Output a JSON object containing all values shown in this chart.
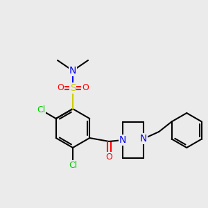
{
  "background_color": "#ebebeb",
  "bond_color": "#000000",
  "bond_lw": 1.5,
  "atom_colors": {
    "N": "#0000ff",
    "O": "#ff0000",
    "S": "#cccc00",
    "Cl": "#00cc00",
    "C": "#000000"
  },
  "font_size": 8.5
}
